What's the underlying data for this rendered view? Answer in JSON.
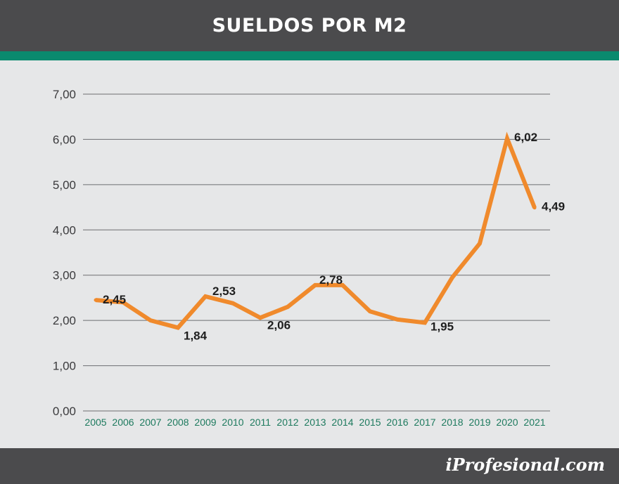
{
  "header": {
    "title": "SUELDOS POR M2"
  },
  "footer": {
    "brand": "iProfesional.com"
  },
  "colors": {
    "header_bg": "#4b4b4d",
    "accent_stripe": "#0a8a6e",
    "line": "#f08a2c",
    "x_tick_text": "#1d7a5e",
    "background": "#e6e7e8"
  },
  "chart_data": {
    "type": "line",
    "title": "SUELDOS POR M2",
    "xlabel": "",
    "ylabel": "",
    "ylim": [
      0,
      7
    ],
    "yticks": [
      "0,00",
      "1,00",
      "2,00",
      "3,00",
      "4,00",
      "5,00",
      "6,00",
      "7,00"
    ],
    "grid": true,
    "categories": [
      "2005",
      "2006",
      "2007",
      "2008",
      "2009",
      "2010",
      "2011",
      "2012",
      "2013",
      "2014",
      "2015",
      "2016",
      "2017",
      "2018",
      "2019",
      "2020",
      "2021"
    ],
    "series": [
      {
        "values": [
          2.45,
          2.4,
          2.0,
          1.84,
          2.53,
          2.38,
          2.06,
          2.3,
          2.78,
          2.78,
          2.2,
          2.02,
          1.95,
          2.95,
          3.7,
          6.02,
          4.49
        ]
      }
    ],
    "data_labels": [
      {
        "index": 0,
        "text": "2,45"
      },
      {
        "index": 3,
        "text": "1,84"
      },
      {
        "index": 4,
        "text": "2,53"
      },
      {
        "index": 6,
        "text": "2,06"
      },
      {
        "index": 8,
        "text": "2,78"
      },
      {
        "index": 12,
        "text": "1,95"
      },
      {
        "index": 15,
        "text": "6,02"
      },
      {
        "index": 16,
        "text": "4,49"
      }
    ]
  }
}
